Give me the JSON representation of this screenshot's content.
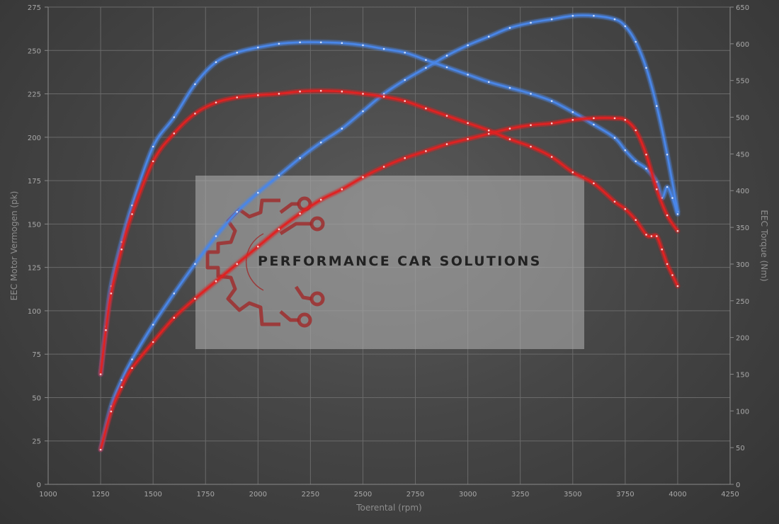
{
  "chart_data": {
    "type": "line",
    "title": "",
    "xlabel": "Toerental (rpm)",
    "ylabel_left": "EEC Motor Vermogen (pk)",
    "ylabel_right": "EEC Torque (Nm)",
    "xlim": [
      1000,
      4250
    ],
    "ylim_left": [
      0,
      275
    ],
    "ylim_right": [
      0,
      650
    ],
    "x_ticks": [
      1000,
      1250,
      1500,
      1750,
      2000,
      2250,
      2500,
      2750,
      3000,
      3250,
      3500,
      3750,
      4000,
      4250
    ],
    "y_ticks_left": [
      0,
      25,
      50,
      75,
      100,
      125,
      150,
      175,
      200,
      225,
      250,
      275
    ],
    "y_ticks_right": [
      0,
      50,
      100,
      150,
      200,
      250,
      300,
      350,
      400,
      450,
      500,
      550,
      600,
      650
    ],
    "grid": true,
    "legend": "none",
    "series": [
      {
        "name": "",
        "axis": "left",
        "quantity": "power",
        "color": "#4a86e8",
        "x": [
          1250,
          1300,
          1350,
          1400,
          1500,
          1600,
          1700,
          1800,
          1900,
          2000,
          2100,
          2200,
          2300,
          2400,
          2500,
          2600,
          2700,
          2800,
          2900,
          3000,
          3100,
          3200,
          3300,
          3400,
          3500,
          3600,
          3700,
          3750,
          3800,
          3850,
          3900,
          3950,
          4000
        ],
        "y": [
          20,
          45,
          60,
          72,
          92,
          110,
          127,
          143,
          157,
          168,
          178,
          188,
          197,
          205,
          215,
          225,
          233,
          240,
          247,
          253,
          258,
          263,
          266,
          268,
          270,
          270,
          268,
          264,
          255,
          240,
          218,
          190,
          157
        ]
      },
      {
        "name": "",
        "axis": "right",
        "quantity": "torque",
        "color": "#4a86e8",
        "x": [
          1250,
          1275,
          1300,
          1350,
          1400,
          1500,
          1600,
          1700,
          1800,
          1900,
          2000,
          2100,
          2200,
          2300,
          2400,
          2500,
          2600,
          2700,
          2800,
          2900,
          3000,
          3100,
          3200,
          3300,
          3400,
          3500,
          3600,
          3700,
          3750,
          3800,
          3850,
          3900,
          3925,
          3950,
          3975,
          4000
        ],
        "y": [
          150,
          215,
          270,
          330,
          380,
          460,
          500,
          545,
          575,
          588,
          595,
          600,
          602,
          602,
          601,
          598,
          593,
          588,
          578,
          568,
          558,
          548,
          540,
          532,
          522,
          507,
          490,
          472,
          455,
          440,
          430,
          412,
          390,
          405,
          390,
          368
        ]
      },
      {
        "name": "",
        "axis": "left",
        "quantity": "power",
        "color": "#e02020",
        "x": [
          1250,
          1300,
          1350,
          1400,
          1500,
          1600,
          1700,
          1800,
          1900,
          2000,
          2100,
          2200,
          2300,
          2400,
          2500,
          2600,
          2700,
          2800,
          2900,
          3000,
          3100,
          3200,
          3300,
          3400,
          3500,
          3600,
          3700,
          3750,
          3800,
          3850,
          3900,
          3950,
          4000
        ],
        "y": [
          20,
          42,
          56,
          67,
          82,
          96,
          107,
          117,
          127,
          137,
          147,
          156,
          164,
          170,
          177,
          183,
          188,
          192,
          196,
          199,
          202,
          205,
          207,
          208,
          210,
          211,
          211,
          210,
          204,
          190,
          170,
          155,
          146
        ]
      },
      {
        "name": "",
        "axis": "right",
        "quantity": "torque",
        "color": "#e02020",
        "x": [
          1250,
          1275,
          1300,
          1350,
          1400,
          1500,
          1600,
          1700,
          1800,
          1900,
          2000,
          2100,
          2200,
          2300,
          2400,
          2500,
          2600,
          2700,
          2800,
          2900,
          3000,
          3100,
          3200,
          3300,
          3400,
          3500,
          3600,
          3700,
          3750,
          3800,
          3850,
          3875,
          3900,
          3925,
          3950,
          3975,
          4000
        ],
        "y": [
          150,
          210,
          260,
          320,
          368,
          440,
          478,
          505,
          520,
          527,
          530,
          532,
          535,
          536,
          535,
          532,
          528,
          522,
          512,
          502,
          492,
          482,
          470,
          460,
          446,
          425,
          410,
          385,
          375,
          360,
          340,
          338,
          338,
          320,
          300,
          285,
          270
        ]
      }
    ]
  },
  "watermark": {
    "text": "PERFORMANCE CAR SOLUTIONS"
  }
}
